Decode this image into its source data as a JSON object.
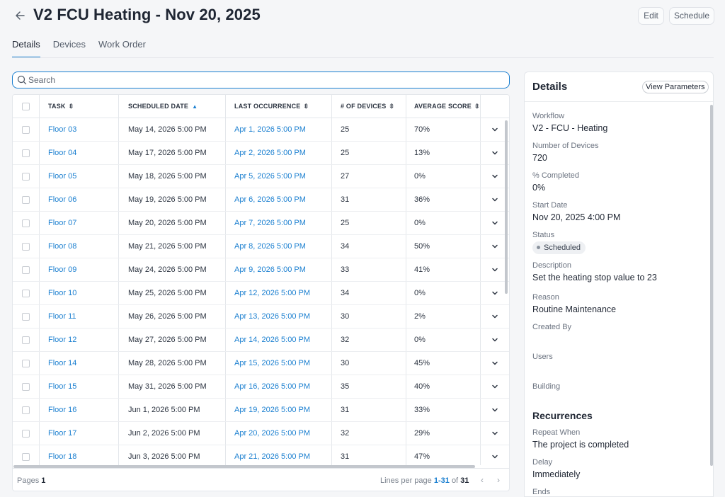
{
  "header": {
    "back_icon": "arrow-left-icon",
    "title": "V2 FCU Heating - Nov 20, 2025",
    "edit_label": "Edit",
    "schedule_label": "Schedule"
  },
  "tabs": [
    {
      "label": "Details",
      "active": true
    },
    {
      "label": "Devices",
      "active": false
    },
    {
      "label": "Work Order",
      "active": false
    }
  ],
  "search": {
    "placeholder": "Search",
    "value": "",
    "icon": "search-icon"
  },
  "table": {
    "columns": {
      "task": "TASK",
      "scheduled_date": "SCHEDULED DATE",
      "last_occurrence": "LAST OCCURRENCE",
      "devices": "# OF DEVICES",
      "average_score": "AVERAGE SCORE"
    },
    "sort": {
      "column": "scheduled_date",
      "direction": "ascending"
    },
    "rows": [
      {
        "task": "Floor 03",
        "scheduled": "May 14, 2026 5:00 PM",
        "last": "Apr 1, 2026 5:00 PM",
        "devices": "25",
        "score": "70%"
      },
      {
        "task": "Floor 04",
        "scheduled": "May 17, 2026 5:00 PM",
        "last": "Apr 2, 2026 5:00 PM",
        "devices": "25",
        "score": "13%"
      },
      {
        "task": "Floor 05",
        "scheduled": "May 18, 2026 5:00 PM",
        "last": "Apr 5, 2026 5:00 PM",
        "devices": "27",
        "score": "0%"
      },
      {
        "task": "Floor 06",
        "scheduled": "May 19, 2026 5:00 PM",
        "last": "Apr 6, 2026 5:00 PM",
        "devices": "31",
        "score": "36%"
      },
      {
        "task": "Floor 07",
        "scheduled": "May 20, 2026 5:00 PM",
        "last": "Apr 7, 2026 5:00 PM",
        "devices": "25",
        "score": "0%"
      },
      {
        "task": "Floor 08",
        "scheduled": "May 21, 2026 5:00 PM",
        "last": "Apr 8, 2026 5:00 PM",
        "devices": "34",
        "score": "50%"
      },
      {
        "task": "Floor 09",
        "scheduled": "May 24, 2026 5:00 PM",
        "last": "Apr 9, 2026 5:00 PM",
        "devices": "33",
        "score": "41%"
      },
      {
        "task": "Floor 10",
        "scheduled": "May 25, 2026 5:00 PM",
        "last": "Apr 12, 2026 5:00 PM",
        "devices": "34",
        "score": "0%"
      },
      {
        "task": "Floor 11",
        "scheduled": "May 26, 2026 5:00 PM",
        "last": "Apr 13, 2026 5:00 PM",
        "devices": "30",
        "score": "2%"
      },
      {
        "task": "Floor 12",
        "scheduled": "May 27, 2026 5:00 PM",
        "last": "Apr 14, 2026 5:00 PM",
        "devices": "32",
        "score": "0%"
      },
      {
        "task": "Floor 14",
        "scheduled": "May 28, 2026 5:00 PM",
        "last": "Apr 15, 2026 5:00 PM",
        "devices": "30",
        "score": "45%"
      },
      {
        "task": "Floor 15",
        "scheduled": "May 31, 2026 5:00 PM",
        "last": "Apr 16, 2026 5:00 PM",
        "devices": "35",
        "score": "40%"
      },
      {
        "task": "Floor 16",
        "scheduled": "Jun 1, 2026 5:00 PM",
        "last": "Apr 19, 2026 5:00 PM",
        "devices": "31",
        "score": "33%"
      },
      {
        "task": "Floor 17",
        "scheduled": "Jun 2, 2026 5:00 PM",
        "last": "Apr 20, 2026 5:00 PM",
        "devices": "32",
        "score": "29%"
      },
      {
        "task": "Floor 18",
        "scheduled": "Jun 3, 2026 5:00 PM",
        "last": "Apr 21, 2026 5:00 PM",
        "devices": "31",
        "score": "47%"
      }
    ]
  },
  "pagination": {
    "pages_label": "Pages",
    "pages_value": "1",
    "lines_label": "Lines per page",
    "range": "1-31",
    "of_label": "of",
    "total": "31"
  },
  "details": {
    "title": "Details",
    "view_parameters_label": "View Parameters",
    "workflow_label": "Workflow",
    "workflow": "V2 - FCU - Heating",
    "devices_label": "Number of Devices",
    "devices": "720",
    "completed_label": "% Completed",
    "completed": "0%",
    "start_label": "Start Date",
    "start": "Nov 20, 2025 4:00 PM",
    "status_label": "Status",
    "status": "Scheduled",
    "description_label": "Description",
    "description": "Set the heating stop value to 23",
    "reason_label": "Reason",
    "reason": "Routine Maintenance",
    "created_by_label": "Created By",
    "users_label": "Users",
    "building_label": "Building",
    "recurrences_title": "Recurrences",
    "repeat_label": "Repeat When",
    "repeat": "The project is completed",
    "delay_label": "Delay",
    "delay": "Immediately",
    "ends_label": "Ends"
  },
  "colors": {
    "accent": "#1a7fd0",
    "text": "#1f2633",
    "muted": "#6b7380",
    "background": "#f5f6f8"
  }
}
